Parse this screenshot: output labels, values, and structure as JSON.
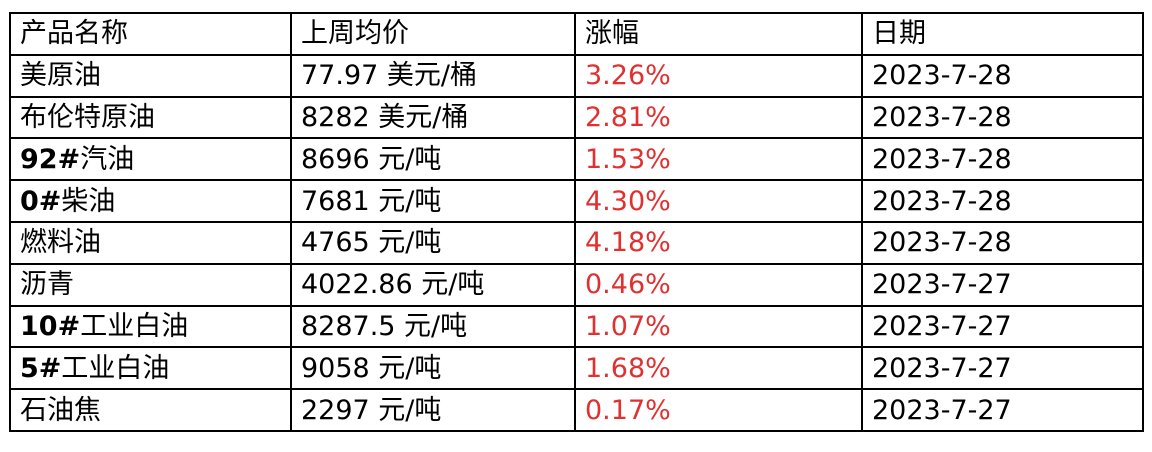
{
  "header": {
    "product": "产品名称",
    "price": "上周均价",
    "change": "涨幅",
    "date": "日期"
  },
  "rows": [
    {
      "name_prefix": "",
      "name_rest": "美原油",
      "price": "77.97 美元/桶",
      "change": "3.26%",
      "date": "2023-7-28"
    },
    {
      "name_prefix": "",
      "name_rest": "布伦特原油",
      "price": "8282 美元/桶",
      "change": "2.81%",
      "date": "2023-7-28"
    },
    {
      "name_prefix": "92#",
      "name_rest": "汽油",
      "price": "8696 元/吨",
      "change": "1.53%",
      "date": "2023-7-28"
    },
    {
      "name_prefix": "0#",
      "name_rest": "柴油",
      "price": "7681 元/吨",
      "change": "4.30%",
      "date": "2023-7-28"
    },
    {
      "name_prefix": "",
      "name_rest": "燃料油",
      "price": "4765 元/吨",
      "change": "4.18%",
      "date": "2023-7-28"
    },
    {
      "name_prefix": "",
      "name_rest": "沥青",
      "price": "4022.86 元/吨",
      "change": "0.46%",
      "date": "2023-7-27"
    },
    {
      "name_prefix": "10#",
      "name_rest": "工业白油",
      "price": "8287.5 元/吨",
      "change": "1.07%",
      "date": "2023-7-27"
    },
    {
      "name_prefix": "5#",
      "name_rest": "工业白油",
      "price": "9058 元/吨",
      "change": "1.68%",
      "date": "2023-7-27"
    },
    {
      "name_prefix": "",
      "name_rest": "石油焦",
      "price": "2297 元/吨",
      "change": "0.17%",
      "date": "2023-7-27"
    }
  ],
  "colors": {
    "change_text": "#e03030",
    "border": "#000000"
  }
}
